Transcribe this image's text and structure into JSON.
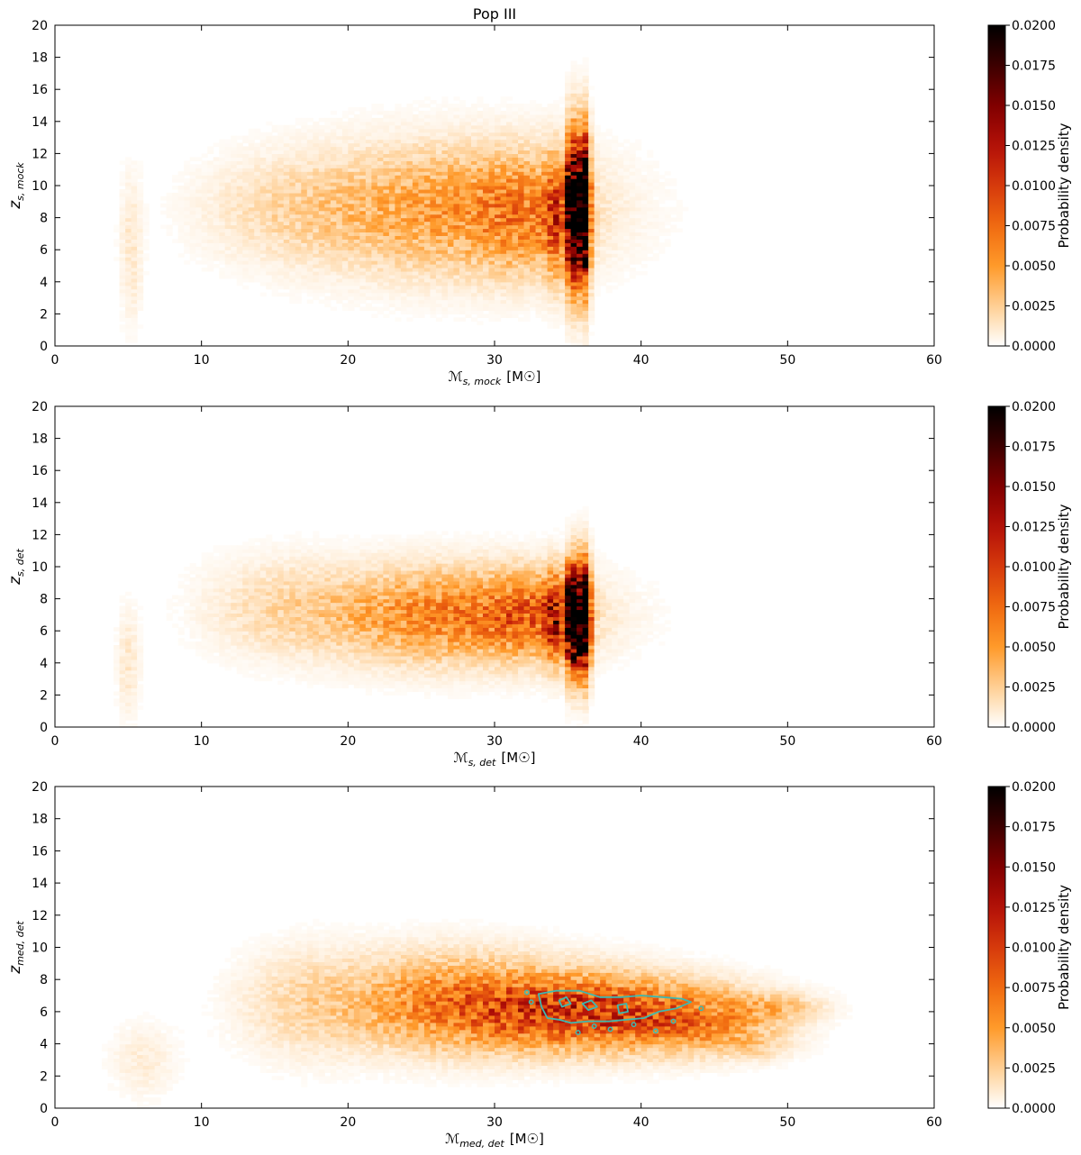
{
  "figure": {
    "title": "Pop III"
  },
  "colormap": {
    "name": "gist_heat_r",
    "stops": [
      "#ffffff",
      "#ffcf94",
      "#ff9a2a",
      "#f06a10",
      "#d63a0c",
      "#b31008",
      "#800000",
      "#3c0000",
      "#000000"
    ]
  },
  "chart_data": [
    {
      "type": "heatmap",
      "title": "Pop III",
      "xlabel": {
        "main": "ℳ",
        "sub": "s, mock",
        "unit": "[M☉]"
      },
      "ylabel": {
        "main": "z",
        "sub": "s, mock"
      },
      "xlim": [
        0,
        60
      ],
      "ylim": [
        0,
        20
      ],
      "x_ticks": [
        0,
        10,
        20,
        30,
        40,
        50,
        60
      ],
      "y_ticks": [
        0,
        2,
        4,
        6,
        8,
        10,
        12,
        14,
        16,
        18,
        20
      ],
      "colorbar": {
        "label": "Probability density",
        "range": [
          0,
          0.02
        ],
        "ticks": [
          "0.0000",
          "0.0025",
          "0.0050",
          "0.0075",
          "0.0100",
          "0.0125",
          "0.0150",
          "0.0175",
          "0.0200"
        ]
      },
      "density_blobs": [
        {
          "x": 27,
          "y": 8.5,
          "sx": 6,
          "sy": 2.6,
          "amp": 0.0048
        },
        {
          "x": 32,
          "y": 8.2,
          "sx": 2.2,
          "sy": 2.4,
          "amp": 0.0035
        },
        {
          "x": 16,
          "y": 8.5,
          "sx": 4,
          "sy": 2.2,
          "amp": 0.0015
        },
        {
          "x": 5.2,
          "y": 6,
          "sx": 0.5,
          "sy": 3,
          "amp": 0.0012
        },
        {
          "x": 35.25,
          "y": 8.5,
          "sx": 0.22,
          "sy": 2.9,
          "amp": 0.028
        },
        {
          "x": 36.05,
          "y": 8.5,
          "sx": 0.28,
          "sy": 2.9,
          "amp": 0.032
        },
        {
          "x": 34.2,
          "y": 8,
          "sx": 0.5,
          "sy": 2.5,
          "amp": 0.006
        }
      ],
      "contour": null
    },
    {
      "type": "heatmap",
      "title": "",
      "xlabel": {
        "main": "ℳ",
        "sub": "s, det",
        "unit": "[M☉]"
      },
      "ylabel": {
        "main": "z",
        "sub": "s, det"
      },
      "xlim": [
        0,
        60
      ],
      "ylim": [
        0,
        20
      ],
      "x_ticks": [
        0,
        10,
        20,
        30,
        40,
        50,
        60
      ],
      "y_ticks": [
        0,
        2,
        4,
        6,
        8,
        10,
        12,
        14,
        16,
        18,
        20
      ],
      "colorbar": {
        "label": "Probability density",
        "range": [
          0,
          0.02
        ],
        "ticks": [
          "0.0000",
          "0.0025",
          "0.0050",
          "0.0075",
          "0.0100",
          "0.0125",
          "0.0150",
          "0.0175",
          "0.0200"
        ]
      },
      "density_blobs": [
        {
          "x": 27,
          "y": 7,
          "sx": 5.5,
          "sy": 1.9,
          "amp": 0.0062
        },
        {
          "x": 32.5,
          "y": 7,
          "sx": 2,
          "sy": 1.7,
          "amp": 0.0045
        },
        {
          "x": 15.5,
          "y": 7.5,
          "sx": 3.5,
          "sy": 2,
          "amp": 0.0016
        },
        {
          "x": 5,
          "y": 4,
          "sx": 0.5,
          "sy": 2.2,
          "amp": 0.0012
        },
        {
          "x": 35.25,
          "y": 6.8,
          "sx": 0.23,
          "sy": 2.1,
          "amp": 0.028
        },
        {
          "x": 36.05,
          "y": 6.8,
          "sx": 0.3,
          "sy": 2.1,
          "amp": 0.032
        },
        {
          "x": 34.1,
          "y": 6.8,
          "sx": 0.45,
          "sy": 1.8,
          "amp": 0.008
        }
      ],
      "contour": null
    },
    {
      "type": "heatmap",
      "title": "",
      "xlabel": {
        "main": "ℳ",
        "sub": "med, det",
        "unit": "[M☉]"
      },
      "ylabel": {
        "main": "z",
        "sub": "med, det"
      },
      "xlim": [
        0,
        60
      ],
      "ylim": [
        0,
        20
      ],
      "x_ticks": [
        0,
        10,
        20,
        30,
        40,
        50,
        60
      ],
      "y_ticks": [
        0,
        2,
        4,
        6,
        8,
        10,
        12,
        14,
        16,
        18,
        20
      ],
      "colorbar": {
        "label": "Probability density",
        "range": [
          0,
          0.02
        ],
        "ticks": [
          "0.0000",
          "0.0025",
          "0.0050",
          "0.0075",
          "0.0100",
          "0.0125",
          "0.0150",
          "0.0175",
          "0.0200"
        ]
      },
      "density_blobs": [
        {
          "x": 36,
          "y": 6,
          "sx": 5,
          "sy": 1.5,
          "amp": 0.0095
        },
        {
          "x": 27,
          "y": 6.6,
          "sx": 5,
          "sy": 1.9,
          "amp": 0.0058
        },
        {
          "x": 44,
          "y": 5.5,
          "sx": 3.5,
          "sy": 1.3,
          "amp": 0.0048
        },
        {
          "x": 49.5,
          "y": 6.3,
          "sx": 2,
          "sy": 0.6,
          "amp": 0.0022
        },
        {
          "x": 48,
          "y": 4,
          "sx": 1.6,
          "sy": 0.6,
          "amp": 0.0016
        },
        {
          "x": 17,
          "y": 6.5,
          "sx": 3,
          "sy": 2.2,
          "amp": 0.0016
        },
        {
          "x": 6,
          "y": 3,
          "sx": 1.5,
          "sy": 1.5,
          "amp": 0.0009
        }
      ],
      "contour": {
        "color": "#3fb8b0",
        "rings": [
          [
            [
              33.0,
              7.1
            ],
            [
              34.2,
              7.3
            ],
            [
              35.8,
              7.3
            ],
            [
              37.2,
              6.9
            ],
            [
              38.6,
              6.9
            ],
            [
              40.0,
              7.0
            ],
            [
              41.5,
              6.9
            ],
            [
              42.8,
              6.8
            ],
            [
              43.4,
              6.6
            ],
            [
              42.4,
              6.2
            ],
            [
              41.2,
              6.0
            ],
            [
              40.2,
              5.6
            ],
            [
              39.0,
              5.5
            ],
            [
              37.8,
              5.4
            ],
            [
              36.4,
              5.4
            ],
            [
              35.2,
              5.3
            ],
            [
              34.4,
              5.5
            ],
            [
              33.6,
              5.6
            ],
            [
              33.2,
              6.3
            ]
          ],
          [
            [
              36.0,
              6.5
            ],
            [
              36.6,
              6.7
            ],
            [
              37.0,
              6.3
            ],
            [
              36.4,
              6.1
            ]
          ],
          [
            [
              38.4,
              6.4
            ],
            [
              39.0,
              6.5
            ],
            [
              39.1,
              6.0
            ],
            [
              38.5,
              5.9
            ]
          ],
          [
            [
              34.4,
              6.7
            ],
            [
              34.9,
              6.9
            ],
            [
              35.2,
              6.5
            ],
            [
              34.6,
              6.3
            ]
          ]
        ],
        "dots": [
          [
            32.5,
            6.6
          ],
          [
            32.2,
            7.2
          ],
          [
            39.5,
            5.2
          ],
          [
            41.0,
            4.8
          ],
          [
            42.2,
            5.4
          ],
          [
            44.1,
            6.2
          ],
          [
            36.8,
            5.1
          ],
          [
            37.9,
            4.9
          ],
          [
            35.7,
            4.7
          ]
        ]
      }
    }
  ]
}
